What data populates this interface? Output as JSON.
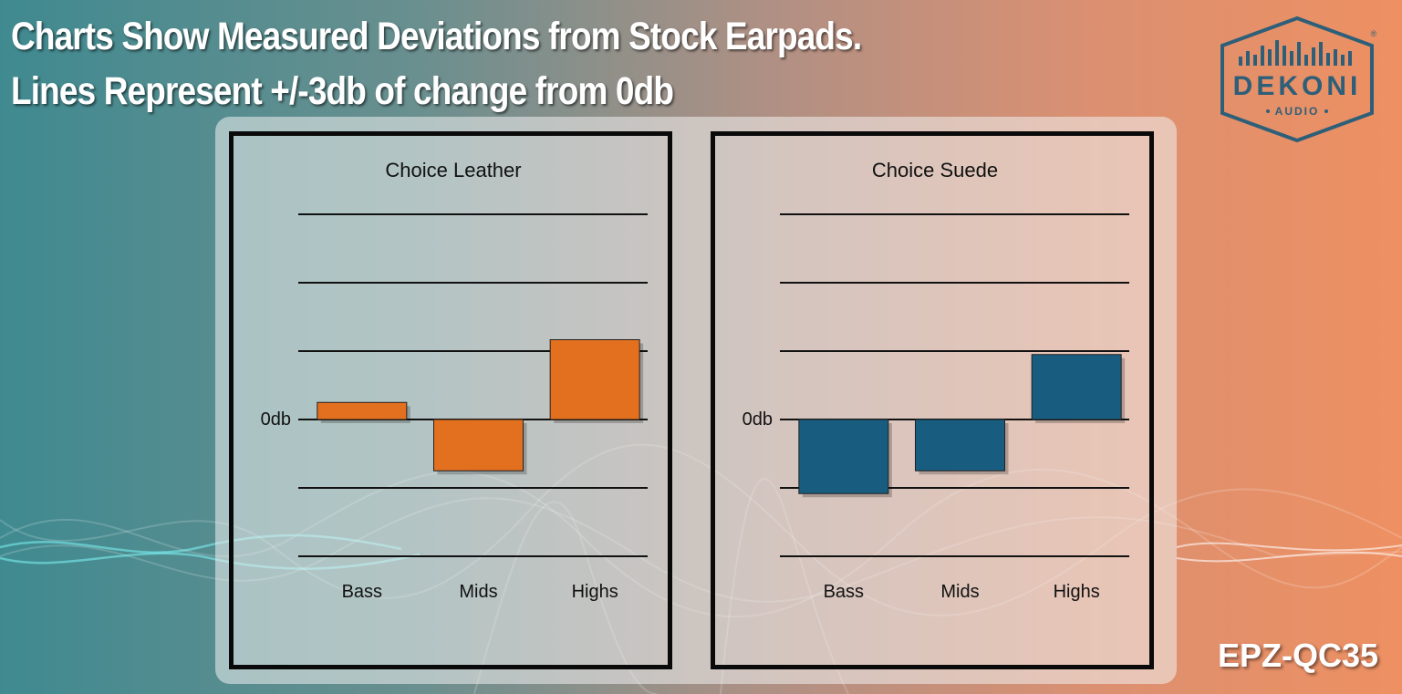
{
  "headline": {
    "line1": "Charts Show Measured Deviations from Stock Earpads.",
    "line2": "Lines Represent +/-3db of change from 0db"
  },
  "logo": {
    "brand": "DEKONI",
    "sub": "AUDIO",
    "registered": "®"
  },
  "model_code": "EPZ-QC35",
  "colors": {
    "leather_bar": "#e3701f",
    "suede_bar": "#185d80",
    "logo": "#2e5f79"
  },
  "chart_data": [
    {
      "type": "bar",
      "title": "Choice Leather",
      "categories": [
        "Bass",
        "Mids",
        "Highs"
      ],
      "values": [
        0.75,
        -2.25,
        3.5
      ],
      "zero_label": "0db",
      "ylim": [
        -6,
        9
      ],
      "gridlines": [
        -6,
        -3,
        0,
        3,
        6,
        9
      ],
      "color": "#e3701f"
    },
    {
      "type": "bar",
      "title": "Choice Suede",
      "categories": [
        "Bass",
        "Mids",
        "Highs"
      ],
      "values": [
        -3.25,
        -2.25,
        2.85
      ],
      "zero_label": "0db",
      "ylim": [
        -6,
        9
      ],
      "gridlines": [
        -6,
        -3,
        0,
        3,
        6,
        9
      ],
      "color": "#185d80"
    }
  ]
}
